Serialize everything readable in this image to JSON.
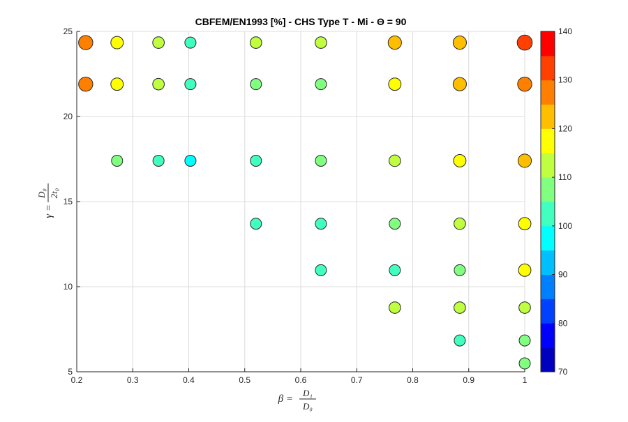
{
  "chart_data": {
    "type": "scatter",
    "title": "CBFEM/EN1993 [%] - CHS Type T - Mi - Θ = 90",
    "xlabel": {
      "lhs": "β =",
      "num": "D₁",
      "den": "D₀"
    },
    "ylabel": {
      "lhs": "γ =",
      "num": "D₀",
      "den": "2t₀"
    },
    "xlim": [
      0.2,
      1.0
    ],
    "ylim": [
      5,
      25
    ],
    "xticks": [
      0.2,
      0.3,
      0.4,
      0.5,
      0.6,
      0.7,
      0.8,
      0.9,
      1
    ],
    "xtick_labels": [
      "0.2",
      "0.3",
      "0.4",
      "0.5",
      "0.6",
      "0.7",
      "0.8",
      "0.9",
      "1"
    ],
    "yticks": [
      5,
      10,
      15,
      20,
      25
    ],
    "ytick_labels": [
      "5",
      "10",
      "15",
      "20",
      "25"
    ],
    "grid": true,
    "colorbar": {
      "limits": [
        70,
        140
      ],
      "ticks": [
        70,
        80,
        90,
        100,
        110,
        120,
        130,
        140
      ],
      "tick_labels": [
        "70",
        "80",
        "90",
        "100",
        "110",
        "120",
        "130",
        "140"
      ],
      "step": 5,
      "colors": [
        "#0000BF",
        "#0000FF",
        "#0040FF",
        "#0080FF",
        "#00BFFF",
        "#00FFFF",
        "#40FFBF",
        "#80FF80",
        "#BFFF40",
        "#FFFF00",
        "#FFBF00",
        "#FF8000",
        "#FF4000",
        "#FF0000"
      ]
    },
    "points": [
      {
        "x": 0.216,
        "y": 24.34,
        "v": 127.5
      },
      {
        "x": 0.272,
        "y": 24.34,
        "v": 117.5
      },
      {
        "x": 0.346,
        "y": 24.34,
        "v": 112.5
      },
      {
        "x": 0.403,
        "y": 24.34,
        "v": 102.5
      },
      {
        "x": 0.52,
        "y": 24.34,
        "v": 112.5
      },
      {
        "x": 0.636,
        "y": 24.34,
        "v": 112.5
      },
      {
        "x": 0.768,
        "y": 24.34,
        "v": 122.5
      },
      {
        "x": 0.884,
        "y": 24.34,
        "v": 122.5
      },
      {
        "x": 1.0,
        "y": 24.34,
        "v": 132.5
      },
      {
        "x": 0.216,
        "y": 21.9,
        "v": 127.5
      },
      {
        "x": 0.272,
        "y": 21.9,
        "v": 117.5
      },
      {
        "x": 0.346,
        "y": 21.9,
        "v": 112.5
      },
      {
        "x": 0.403,
        "y": 21.9,
        "v": 102.5
      },
      {
        "x": 0.52,
        "y": 21.9,
        "v": 107.5
      },
      {
        "x": 0.636,
        "y": 21.9,
        "v": 107.5
      },
      {
        "x": 0.768,
        "y": 21.9,
        "v": 117.5
      },
      {
        "x": 0.884,
        "y": 21.9,
        "v": 122.5
      },
      {
        "x": 1.0,
        "y": 21.9,
        "v": 127.5
      },
      {
        "x": 0.272,
        "y": 17.4,
        "v": 107.5
      },
      {
        "x": 0.346,
        "y": 17.4,
        "v": 102.5
      },
      {
        "x": 0.403,
        "y": 17.4,
        "v": 97.5
      },
      {
        "x": 0.52,
        "y": 17.4,
        "v": 102.5
      },
      {
        "x": 0.636,
        "y": 17.4,
        "v": 107.5
      },
      {
        "x": 0.768,
        "y": 17.4,
        "v": 112.5
      },
      {
        "x": 0.884,
        "y": 17.4,
        "v": 117.5
      },
      {
        "x": 1.0,
        "y": 17.4,
        "v": 122.5
      },
      {
        "x": 0.52,
        "y": 13.7,
        "v": 102.5
      },
      {
        "x": 0.636,
        "y": 13.7,
        "v": 102.5
      },
      {
        "x": 0.768,
        "y": 13.7,
        "v": 107.5
      },
      {
        "x": 0.884,
        "y": 13.7,
        "v": 112.5
      },
      {
        "x": 1.0,
        "y": 13.7,
        "v": 117.5
      },
      {
        "x": 0.636,
        "y": 10.97,
        "v": 102.5
      },
      {
        "x": 0.768,
        "y": 10.97,
        "v": 102.5
      },
      {
        "x": 0.884,
        "y": 10.97,
        "v": 107.5
      },
      {
        "x": 1.0,
        "y": 10.97,
        "v": 117.5
      },
      {
        "x": 0.768,
        "y": 8.77,
        "v": 112.5
      },
      {
        "x": 0.884,
        "y": 8.77,
        "v": 112.5
      },
      {
        "x": 1.0,
        "y": 8.77,
        "v": 112.5
      },
      {
        "x": 0.884,
        "y": 6.84,
        "v": 102.5
      },
      {
        "x": 1.0,
        "y": 6.84,
        "v": 107.5
      },
      {
        "x": 1.0,
        "y": 5.49,
        "v": 107.5
      }
    ]
  }
}
